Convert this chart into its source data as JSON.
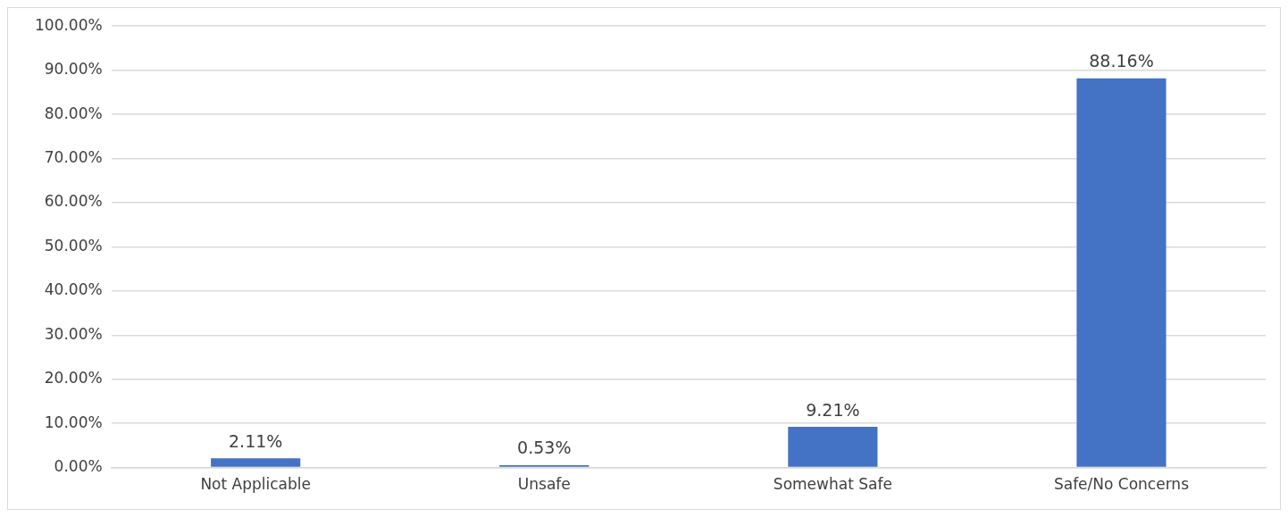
{
  "chart_data": {
    "type": "bar",
    "categories": [
      "Not Applicable",
      "Unsafe",
      "Somewhat Safe",
      "Safe/No Concerns"
    ],
    "values": [
      2.11,
      0.53,
      9.21,
      88.16
    ],
    "value_labels": [
      "2.11%",
      "0.53%",
      "9.21%",
      "88.16%"
    ],
    "color": "#4472c4",
    "ylim": [
      0,
      100
    ],
    "yticks": [
      {
        "value": 0,
        "label": "0.00%"
      },
      {
        "value": 10,
        "label": "10.00%"
      },
      {
        "value": 20,
        "label": "20.00%"
      },
      {
        "value": 30,
        "label": "30.00%"
      },
      {
        "value": 40,
        "label": "40.00%"
      },
      {
        "value": 50,
        "label": "50.00%"
      },
      {
        "value": 60,
        "label": "60.00%"
      },
      {
        "value": 70,
        "label": "70.00%"
      },
      {
        "value": 80,
        "label": "80.00%"
      },
      {
        "value": 90,
        "label": "90.00%"
      },
      {
        "value": 100,
        "label": "100.00%"
      }
    ],
    "grid": "y"
  }
}
